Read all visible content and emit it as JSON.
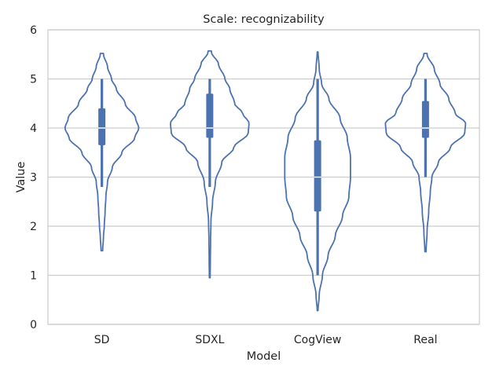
{
  "chart_data": {
    "type": "violin",
    "title": "Scale: recognizability",
    "xlabel": "Model",
    "ylabel": "Value",
    "ylim": [
      0,
      6
    ],
    "yticks": [
      0,
      1,
      2,
      3,
      4,
      5,
      6
    ],
    "grid": "horizontal",
    "color": "#4c72b0",
    "categories": [
      "SD",
      "SDXL",
      "CogView",
      "Real"
    ],
    "violins": [
      {
        "name": "SD",
        "min": 2.8,
        "q1": 3.65,
        "median": 4.0,
        "q3": 4.4,
        "max": 5.0,
        "kde_range": [
          1.5,
          5.52
        ],
        "profile": [
          [
            1.5,
            0.02
          ],
          [
            1.8,
            0.04
          ],
          [
            2.0,
            0.06
          ],
          [
            2.3,
            0.08
          ],
          [
            2.6,
            0.1
          ],
          [
            2.9,
            0.14
          ],
          [
            3.2,
            0.26
          ],
          [
            3.5,
            0.5
          ],
          [
            3.8,
            0.82
          ],
          [
            4.0,
            0.92
          ],
          [
            4.2,
            0.84
          ],
          [
            4.5,
            0.58
          ],
          [
            4.8,
            0.36
          ],
          [
            5.0,
            0.24
          ],
          [
            5.25,
            0.14
          ],
          [
            5.5,
            0.04
          ]
        ]
      },
      {
        "name": "SDXL",
        "min": 2.8,
        "q1": 3.8,
        "median": 4.0,
        "q3": 4.7,
        "max": 5.0,
        "kde_range": [
          0.95,
          5.57
        ],
        "profile": [
          [
            0.95,
            0.01
          ],
          [
            1.3,
            0.015
          ],
          [
            1.7,
            0.02
          ],
          [
            2.1,
            0.03
          ],
          [
            2.5,
            0.07
          ],
          [
            2.9,
            0.14
          ],
          [
            3.3,
            0.3
          ],
          [
            3.6,
            0.6
          ],
          [
            3.9,
            0.96
          ],
          [
            4.1,
            0.98
          ],
          [
            4.3,
            0.82
          ],
          [
            4.5,
            0.62
          ],
          [
            4.8,
            0.5
          ],
          [
            5.0,
            0.38
          ],
          [
            5.3,
            0.22
          ],
          [
            5.55,
            0.04
          ]
        ]
      },
      {
        "name": "CogView",
        "min": 1.0,
        "q1": 2.3,
        "median": 3.0,
        "q3": 3.75,
        "max": 5.0,
        "kde_range": [
          0.28,
          5.55
        ],
        "profile": [
          [
            0.28,
            0.01
          ],
          [
            0.6,
            0.04
          ],
          [
            1.0,
            0.12
          ],
          [
            1.4,
            0.26
          ],
          [
            1.8,
            0.44
          ],
          [
            2.2,
            0.62
          ],
          [
            2.6,
            0.78
          ],
          [
            3.0,
            0.82
          ],
          [
            3.4,
            0.82
          ],
          [
            3.8,
            0.74
          ],
          [
            4.2,
            0.56
          ],
          [
            4.6,
            0.28
          ],
          [
            4.9,
            0.1
          ],
          [
            5.2,
            0.04
          ],
          [
            5.55,
            0.01
          ]
        ]
      },
      {
        "name": "Real",
        "min": 3.0,
        "q1": 3.8,
        "median": 4.0,
        "q3": 4.55,
        "max": 5.0,
        "kde_range": [
          1.48,
          5.52
        ],
        "profile": [
          [
            1.48,
            0.015
          ],
          [
            1.9,
            0.04
          ],
          [
            2.3,
            0.08
          ],
          [
            2.7,
            0.12
          ],
          [
            3.0,
            0.16
          ],
          [
            3.3,
            0.32
          ],
          [
            3.6,
            0.62
          ],
          [
            3.9,
            0.98
          ],
          [
            4.1,
            1.0
          ],
          [
            4.3,
            0.74
          ],
          [
            4.6,
            0.58
          ],
          [
            4.9,
            0.36
          ],
          [
            5.2,
            0.22
          ],
          [
            5.5,
            0.04
          ]
        ]
      }
    ]
  }
}
